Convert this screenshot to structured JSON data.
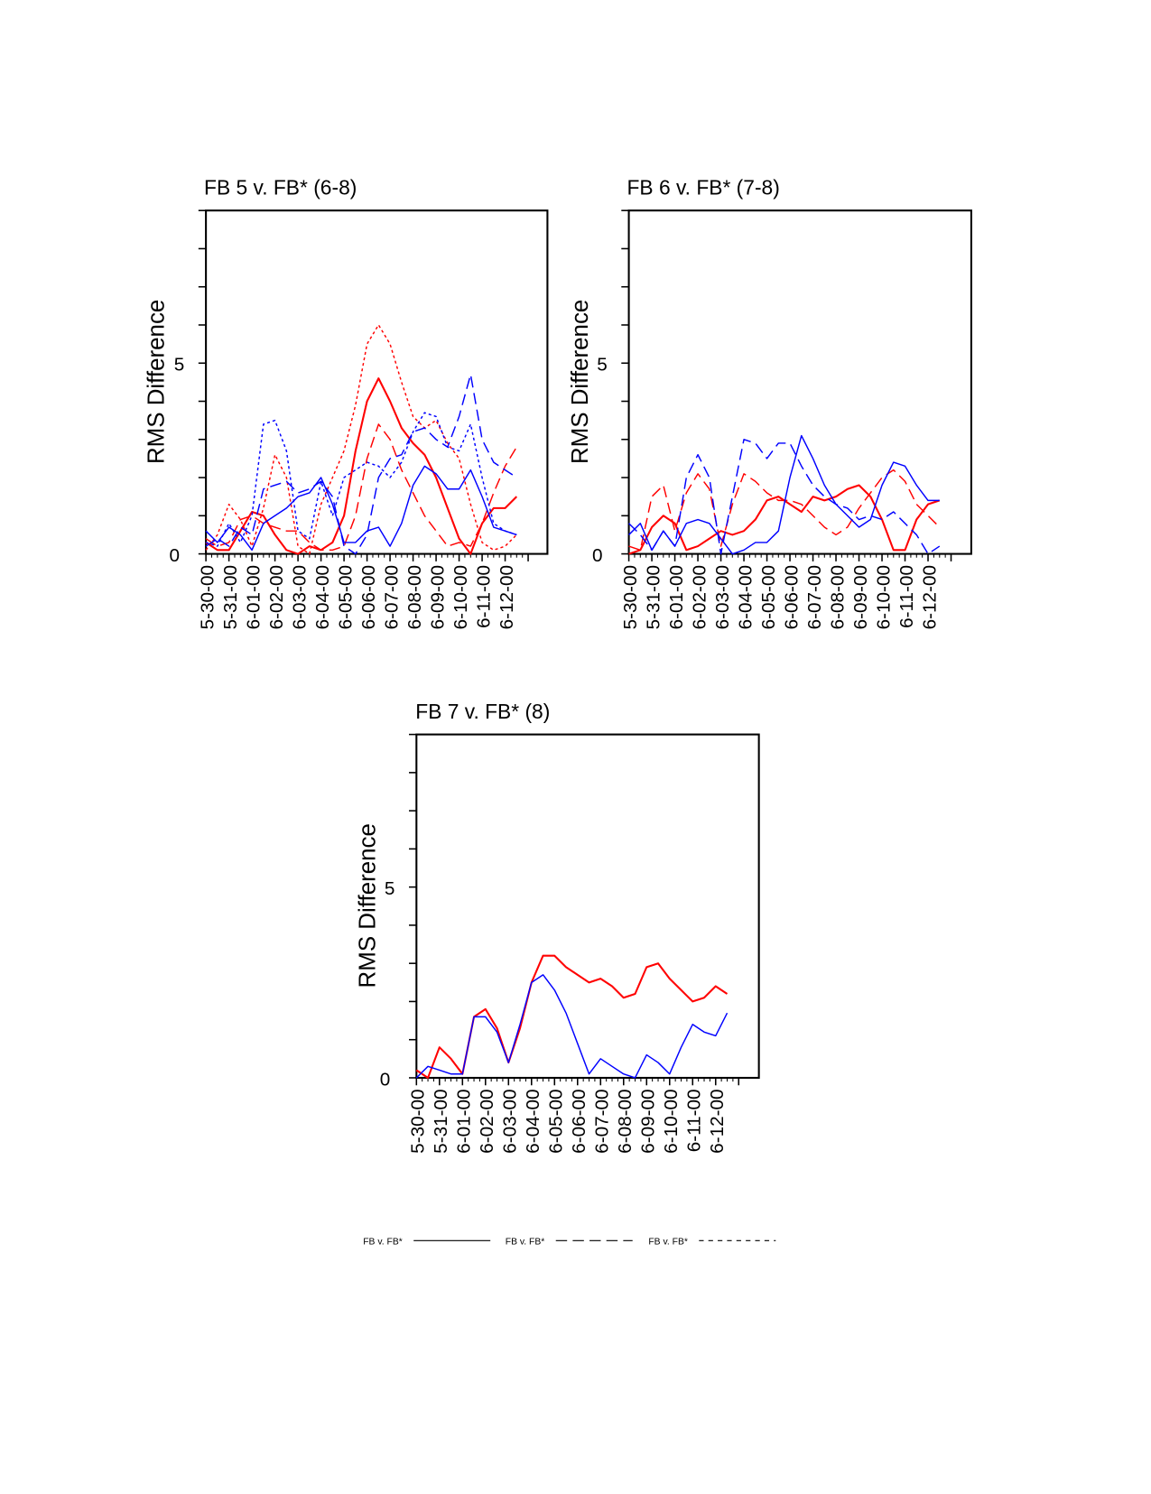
{
  "chart_data": [
    {
      "type": "line",
      "title": "FB 5 v. FB* (6-8)",
      "xlabel": "",
      "ylabel": "RMS Difference",
      "ylim": [
        0,
        9
      ],
      "ytick_labels": [
        "0",
        "5"
      ],
      "xtick_labels": [
        "5-30-00",
        "5-31-00",
        "6-01-00",
        "6-02-00",
        "6-03-00",
        "6-04-00",
        "6-05-00",
        "6-06-00",
        "6-07-00",
        "6-08-00",
        "6-09-00",
        "6-10-00",
        "6-11-00",
        "6-12-00"
      ],
      "x_days": [
        0,
        0.5,
        1,
        1.5,
        2,
        2.5,
        3,
        3.5,
        4,
        4.5,
        5,
        5.5,
        6,
        6.5,
        7,
        7.5,
        8,
        8.5,
        9,
        9.5,
        10,
        10.5,
        11,
        11.5,
        12,
        12.5,
        13,
        13.5
      ],
      "series": [
        {
          "name": "red solid",
          "color": "#ff0000",
          "style": "solid",
          "values": [
            0.3,
            0.1,
            0.1,
            0.6,
            1.1,
            1.0,
            0.5,
            0.1,
            0.0,
            0.2,
            0.1,
            0.3,
            1.0,
            2.7,
            4.0,
            4.6,
            4.0,
            3.3,
            2.9,
            2.6,
            2.0,
            1.2,
            0.4,
            0.0,
            0.8,
            1.2,
            1.2,
            1.5
          ]
        },
        {
          "name": "red dashed",
          "color": "#ff0000",
          "style": "dashed",
          "values": [
            0.4,
            0.2,
            0.3,
            0.9,
            1.0,
            0.8,
            0.7,
            0.6,
            0.6,
            0.3,
            0.1,
            0.1,
            0.2,
            1.0,
            2.5,
            3.4,
            3.0,
            2.2,
            1.6,
            1.0,
            0.6,
            0.2,
            0.3,
            0.2,
            0.8,
            1.6,
            2.3,
            2.8
          ]
        },
        {
          "name": "red dotted",
          "color": "#ff0000",
          "style": "dotted",
          "values": [
            0.1,
            0.5,
            1.3,
            0.9,
            0.2,
            1.2,
            2.6,
            2.0,
            0.2,
            0.0,
            1.3,
            2.0,
            2.7,
            3.9,
            5.5,
            6.0,
            5.5,
            4.5,
            3.6,
            3.3,
            3.5,
            2.9,
            2.5,
            1.3,
            0.3,
            0.1,
            0.2,
            0.5
          ]
        },
        {
          "name": "blue solid",
          "color": "#0000ff",
          "style": "solid",
          "values": [
            0.6,
            0.3,
            0.7,
            0.5,
            0.1,
            0.8,
            1.0,
            1.2,
            1.5,
            1.6,
            2.0,
            1.3,
            0.3,
            0.3,
            0.6,
            0.7,
            0.2,
            0.8,
            1.8,
            2.3,
            2.1,
            1.7,
            1.7,
            2.2,
            1.5,
            0.7,
            0.6,
            0.5
          ]
        },
        {
          "name": "blue dashed",
          "color": "#0000ff",
          "style": "dashed",
          "values": [
            0.2,
            0.4,
            0.2,
            0.7,
            0.5,
            1.7,
            1.8,
            1.9,
            1.6,
            1.7,
            1.9,
            1.5,
            0.2,
            0.0,
            0.5,
            2.0,
            2.5,
            2.6,
            3.2,
            3.3,
            3.0,
            2.8,
            3.6,
            4.7,
            3.0,
            2.4,
            2.2,
            2.0
          ]
        },
        {
          "name": "blue dotted",
          "color": "#0000ff",
          "style": "dotted",
          "values": [
            0.3,
            0.2,
            0.8,
            0.3,
            1.0,
            3.4,
            3.5,
            2.7,
            0.6,
            0.4,
            1.9,
            1.0,
            2.0,
            2.2,
            2.4,
            2.3,
            2.0,
            2.4,
            3.2,
            3.7,
            3.6,
            2.8,
            2.7,
            3.4,
            2.0,
            0.8,
            0.6,
            0.5
          ]
        }
      ]
    },
    {
      "type": "line",
      "title": "FB 6 v. FB* (7-8)",
      "xlabel": "",
      "ylabel": "RMS Difference",
      "ylim": [
        0,
        9
      ],
      "ytick_labels": [
        "0",
        "5"
      ],
      "xtick_labels": [
        "5-30-00",
        "5-31-00",
        "6-01-00",
        "6-02-00",
        "6-03-00",
        "6-04-00",
        "6-05-00",
        "6-06-00",
        "6-07-00",
        "6-08-00",
        "6-09-00",
        "6-10-00",
        "6-11-00",
        "6-12-00"
      ],
      "x_days": [
        0,
        0.5,
        1,
        1.5,
        2,
        2.5,
        3,
        3.5,
        4,
        4.5,
        5,
        5.5,
        6,
        6.5,
        7,
        7.5,
        8,
        8.5,
        9,
        9.5,
        10,
        10.5,
        11,
        11.5,
        12,
        12.5,
        13,
        13.5
      ],
      "series": [
        {
          "name": "red solid",
          "color": "#ff0000",
          "style": "solid",
          "values": [
            0.0,
            0.1,
            0.7,
            1.0,
            0.8,
            0.1,
            0.2,
            0.4,
            0.6,
            0.5,
            0.6,
            0.9,
            1.4,
            1.5,
            1.3,
            1.1,
            1.5,
            1.4,
            1.5,
            1.7,
            1.8,
            1.5,
            0.9,
            0.1,
            0.1,
            0.9,
            1.3,
            1.4
          ]
        },
        {
          "name": "red dashed",
          "color": "#ff0000",
          "style": "dashed",
          "values": [
            0.2,
            0.1,
            1.5,
            1.8,
            0.6,
            1.6,
            2.1,
            1.7,
            0.2,
            1.3,
            2.1,
            1.9,
            1.6,
            1.4,
            1.4,
            1.3,
            1.0,
            0.7,
            0.5,
            0.7,
            1.2,
            1.6,
            2.0,
            2.2,
            1.9,
            1.3,
            1.0,
            0.7
          ]
        },
        {
          "name": "blue solid",
          "color": "#0000ff",
          "style": "solid",
          "values": [
            0.5,
            0.8,
            0.1,
            0.6,
            0.2,
            0.8,
            0.9,
            0.8,
            0.4,
            0.0,
            0.1,
            0.3,
            0.3,
            0.6,
            2.0,
            3.1,
            2.5,
            1.8,
            1.3,
            1.0,
            0.7,
            0.9,
            1.8,
            2.4,
            2.3,
            1.8,
            1.4,
            1.4
          ]
        },
        {
          "name": "blue dashed",
          "color": "#0000ff",
          "style": "dashed",
          "values": [
            0.8,
            0.5,
            0.1,
            0.6,
            0.2,
            2.0,
            2.6,
            2.0,
            0.0,
            1.5,
            3.0,
            2.9,
            2.5,
            2.9,
            2.9,
            2.3,
            1.8,
            1.5,
            1.3,
            1.2,
            0.9,
            1.0,
            0.9,
            1.1,
            0.8,
            0.5,
            0.0,
            0.2
          ]
        }
      ]
    },
    {
      "type": "line",
      "title": "FB 7 v. FB* (8)",
      "xlabel": "",
      "ylabel": "RMS Difference",
      "ylim": [
        0,
        9
      ],
      "ytick_labels": [
        "0",
        "5"
      ],
      "xtick_labels": [
        "5-30-00",
        "5-31-00",
        "6-01-00",
        "6-02-00",
        "6-03-00",
        "6-04-00",
        "6-05-00",
        "6-06-00",
        "6-07-00",
        "6-08-00",
        "6-09-00",
        "6-10-00",
        "6-11-00",
        "6-12-00"
      ],
      "x_days": [
        0,
        0.5,
        1,
        1.5,
        2,
        2.5,
        3,
        3.5,
        4,
        4.5,
        5,
        5.5,
        6,
        6.5,
        7,
        7.5,
        8,
        8.5,
        9,
        9.5,
        10,
        10.5,
        11,
        11.5,
        12,
        12.5,
        13,
        13.5
      ],
      "series": [
        {
          "name": "red solid",
          "color": "#ff0000",
          "style": "solid",
          "values": [
            0.2,
            0.0,
            0.8,
            0.5,
            0.1,
            1.6,
            1.8,
            1.3,
            0.4,
            1.3,
            2.5,
            3.2,
            3.2,
            2.9,
            2.7,
            2.5,
            2.6,
            2.4,
            2.1,
            2.2,
            2.9,
            3.0,
            2.6,
            2.3,
            2.0,
            2.1,
            2.4,
            2.2
          ]
        },
        {
          "name": "blue solid",
          "color": "#0000ff",
          "style": "solid",
          "values": [
            0.0,
            0.3,
            0.2,
            0.1,
            0.1,
            1.6,
            1.6,
            1.2,
            0.4,
            1.4,
            2.5,
            2.7,
            2.3,
            1.7,
            0.9,
            0.1,
            0.5,
            0.3,
            0.1,
            0.0,
            0.6,
            0.4,
            0.1,
            0.8,
            1.4,
            1.2,
            1.1,
            1.7
          ]
        }
      ]
    }
  ],
  "legend": {
    "placement": "bottom",
    "entries": [
      {
        "label": "FB v. FB*",
        "style": "solid"
      },
      {
        "label": "FB v. FB*",
        "style": "dashed"
      },
      {
        "label": "FB v. FB*",
        "style": "dotted"
      }
    ]
  }
}
